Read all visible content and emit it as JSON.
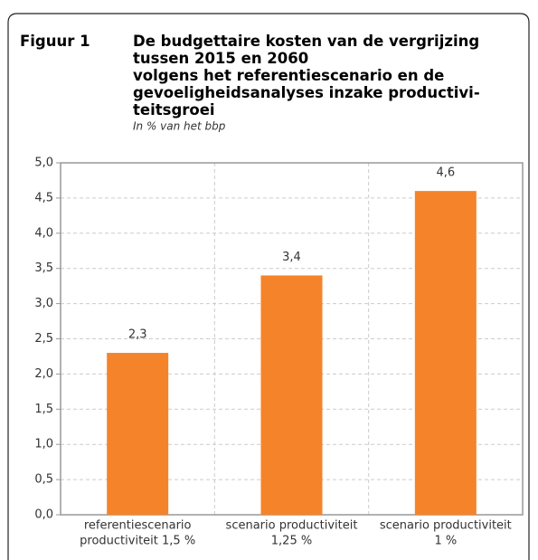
{
  "chart_data": {
    "type": "bar",
    "figure_label": "Figuur 1",
    "title_lines": [
      "De budgettaire kosten van de vergrijzing",
      "tussen 2015 en 2060",
      "volgens het referentiescenario en de",
      "gevoeligheidsanalyses inzake productivi-",
      "teitsgroei"
    ],
    "subtitle": "In % van het bbp",
    "categories": [
      [
        "referentiescenario",
        "productiviteit 1,5 %"
      ],
      [
        "scenario productiviteit",
        "1,25 %"
      ],
      [
        "scenario productiviteit",
        "1 %"
      ]
    ],
    "values": [
      2.3,
      3.4,
      4.6
    ],
    "value_labels": [
      "2,3",
      "3,4",
      "4,6"
    ],
    "color": "#f5832a",
    "ylim": [
      0,
      5
    ],
    "yticks": [
      {
        "value": 0,
        "label": "0,0"
      },
      {
        "value": 0.5,
        "label": "0,5"
      },
      {
        "value": 1,
        "label": "1,0"
      },
      {
        "value": 1.5,
        "label": "1,5"
      },
      {
        "value": 2,
        "label": "2,0"
      },
      {
        "value": 2.5,
        "label": "2,5"
      },
      {
        "value": 3,
        "label": "3,0"
      },
      {
        "value": 3.5,
        "label": "3,5"
      },
      {
        "value": 4,
        "label": "4,0"
      },
      {
        "value": 4.5,
        "label": "4,5"
      },
      {
        "value": 5,
        "label": "5,0"
      }
    ],
    "grid": true
  }
}
